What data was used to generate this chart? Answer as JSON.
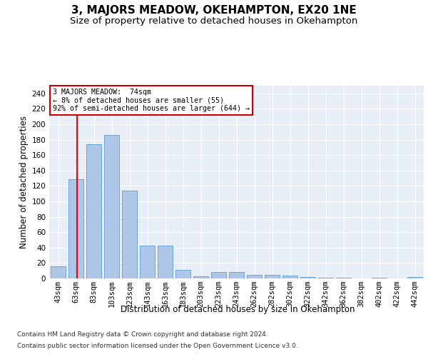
{
  "title": "3, MAJORS MEADOW, OKEHAMPTON, EX20 1NE",
  "subtitle": "Size of property relative to detached houses in Okehampton",
  "xlabel": "Distribution of detached houses by size in Okehampton",
  "ylabel": "Number of detached properties",
  "footer_line1": "Contains HM Land Registry data © Crown copyright and database right 2024.",
  "footer_line2": "Contains public sector information licensed under the Open Government Licence v3.0.",
  "bin_labels": [
    "43sqm",
    "63sqm",
    "83sqm",
    "103sqm",
    "123sqm",
    "143sqm",
    "163sqm",
    "183sqm",
    "203sqm",
    "223sqm",
    "243sqm",
    "262sqm",
    "282sqm",
    "302sqm",
    "322sqm",
    "342sqm",
    "362sqm",
    "382sqm",
    "402sqm",
    "422sqm",
    "442sqm"
  ],
  "bar_values": [
    16,
    129,
    174,
    186,
    114,
    43,
    43,
    11,
    3,
    8,
    8,
    5,
    5,
    4,
    2,
    1,
    1,
    0,
    1,
    0,
    2
  ],
  "bar_color": "#aec6e8",
  "bar_edge_color": "#5b9bd5",
  "red_line_color": "#ff0000",
  "annotation_text": "3 MAJORS MEADOW:  74sqm\n← 8% of detached houses are smaller (55)\n92% of semi-detached houses are larger (644) →",
  "annotation_box_edge": "#cc0000",
  "ylim": [
    0,
    250
  ],
  "yticks": [
    0,
    20,
    40,
    60,
    80,
    100,
    120,
    140,
    160,
    180,
    200,
    220,
    240
  ],
  "plot_background": "#e8eef6",
  "grid_color": "#ffffff",
  "title_fontsize": 11,
  "subtitle_fontsize": 9.5,
  "axis_fontsize": 8.5,
  "tick_fontsize": 7.5,
  "footer_fontsize": 6.5,
  "fig_bg": "#ffffff"
}
